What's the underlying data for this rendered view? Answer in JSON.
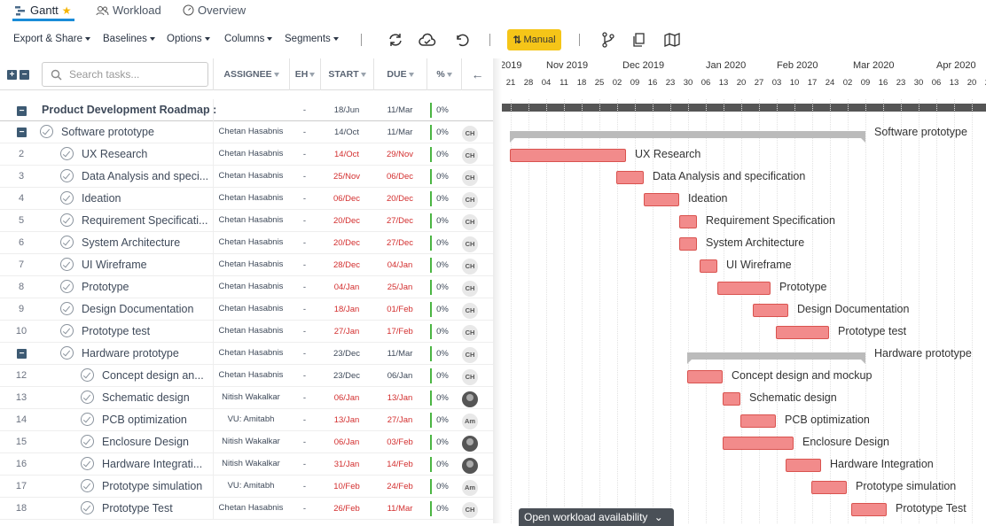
{
  "tabs": [
    {
      "label": "Gantt",
      "active": true
    },
    {
      "label": "Workload",
      "active": false
    },
    {
      "label": "Overview",
      "active": false
    }
  ],
  "toolbar": {
    "export_label": "Export & Share",
    "baselines_label": "Baselines",
    "options_label": "Options",
    "columns_label": "Columns",
    "segments_label": "Segments",
    "manual_label": "Manual"
  },
  "grid": {
    "search_placeholder": "Search tasks...",
    "columns": {
      "assignee": "ASSIGNEE",
      "eh": "EH",
      "start": "START",
      "due": "DUE",
      "pct": "%"
    }
  },
  "project": {
    "name": "Product Development Roadmap :",
    "eh": "-",
    "start": "18/Jun",
    "due": "11/Mar",
    "pct": "0%"
  },
  "rows": [
    {
      "num": "",
      "name": "Software prototype",
      "group": true,
      "indent": 1,
      "assignee": "Chetan Hasabnis",
      "eh": "-",
      "start": "14/Oct",
      "due": "11/Mar",
      "late": false,
      "pct": "0%",
      "avatar": "CH"
    },
    {
      "num": "2",
      "name": "UX Research",
      "indent": 2,
      "assignee": "Chetan Hasabnis",
      "eh": "-",
      "start": "14/Oct",
      "due": "29/Nov",
      "late": true,
      "pct": "0%",
      "avatar": "CH"
    },
    {
      "num": "3",
      "name": "Data Analysis and speci...",
      "indent": 2,
      "assignee": "Chetan Hasabnis",
      "eh": "-",
      "start": "25/Nov",
      "due": "06/Dec",
      "late": true,
      "pct": "0%",
      "avatar": "CH"
    },
    {
      "num": "4",
      "name": "Ideation",
      "indent": 2,
      "assignee": "Chetan Hasabnis",
      "eh": "-",
      "start": "06/Dec",
      "due": "20/Dec",
      "late": true,
      "pct": "0%",
      "avatar": "CH"
    },
    {
      "num": "5",
      "name": "Requirement Specificati...",
      "indent": 2,
      "assignee": "Chetan Hasabnis",
      "eh": "-",
      "start": "20/Dec",
      "due": "27/Dec",
      "late": true,
      "pct": "0%",
      "avatar": "CH"
    },
    {
      "num": "6",
      "name": "System Architecture",
      "indent": 2,
      "assignee": "Chetan Hasabnis",
      "eh": "-",
      "start": "20/Dec",
      "due": "27/Dec",
      "late": true,
      "pct": "0%",
      "avatar": "CH"
    },
    {
      "num": "7",
      "name": "UI Wireframe",
      "indent": 2,
      "assignee": "Chetan Hasabnis",
      "eh": "-",
      "start": "28/Dec",
      "due": "04/Jan",
      "late": true,
      "pct": "0%",
      "avatar": "CH"
    },
    {
      "num": "8",
      "name": "Prototype",
      "indent": 2,
      "assignee": "Chetan Hasabnis",
      "eh": "-",
      "start": "04/Jan",
      "due": "25/Jan",
      "late": true,
      "pct": "0%",
      "avatar": "CH"
    },
    {
      "num": "9",
      "name": "Design Documentation",
      "indent": 2,
      "assignee": "Chetan Hasabnis",
      "eh": "-",
      "start": "18/Jan",
      "due": "01/Feb",
      "late": true,
      "pct": "0%",
      "avatar": "CH"
    },
    {
      "num": "10",
      "name": "Prototype test",
      "indent": 2,
      "assignee": "Chetan Hasabnis",
      "eh": "-",
      "start": "27/Jan",
      "due": "17/Feb",
      "late": true,
      "pct": "0%",
      "avatar": "CH"
    },
    {
      "num": "",
      "name": "Hardware prototype",
      "group": true,
      "indent": 2,
      "assignee": "Chetan Hasabnis",
      "eh": "-",
      "start": "23/Dec",
      "due": "11/Mar",
      "late": false,
      "pct": "0%",
      "avatar": "CH"
    },
    {
      "num": "12",
      "name": "Concept design an...",
      "indent": 3,
      "assignee": "Chetan Hasabnis",
      "eh": "-",
      "start": "23/Dec",
      "due": "06/Jan",
      "late": false,
      "pct": "0%",
      "avatar": "CH"
    },
    {
      "num": "13",
      "name": "Schematic design",
      "indent": 3,
      "assignee": "Nitish Wakalkar",
      "eh": "-",
      "start": "06/Jan",
      "due": "13/Jan",
      "late": true,
      "pct": "0%",
      "avatar": "photo"
    },
    {
      "num": "14",
      "name": "PCB optimization",
      "indent": 3,
      "assignee": "VU: Amitabh",
      "eh": "-",
      "start": "13/Jan",
      "due": "27/Jan",
      "late": true,
      "pct": "0%",
      "avatar": "Am"
    },
    {
      "num": "15",
      "name": "Enclosure Design",
      "indent": 3,
      "assignee": "Nitish Wakalkar",
      "eh": "-",
      "start": "06/Jan",
      "due": "03/Feb",
      "late": true,
      "pct": "0%",
      "avatar": "photo"
    },
    {
      "num": "16",
      "name": "Hardware Integrati...",
      "indent": 3,
      "assignee": "Nitish Wakalkar",
      "eh": "-",
      "start": "31/Jan",
      "due": "14/Feb",
      "late": true,
      "pct": "0%",
      "avatar": "photo"
    },
    {
      "num": "17",
      "name": "Prototype simulation",
      "indent": 3,
      "assignee": "VU: Amitabh",
      "eh": "-",
      "start": "10/Feb",
      "due": "24/Feb",
      "late": true,
      "pct": "0%",
      "avatar": "Am"
    },
    {
      "num": "18",
      "name": "Prototype Test",
      "indent": 3,
      "assignee": "Chetan Hasabnis",
      "eh": "-",
      "start": "26/Feb",
      "due": "11/Mar",
      "late": true,
      "pct": "0%",
      "avatar": "CH"
    }
  ],
  "timeline": {
    "months": [
      "2019",
      "Nov 2019",
      "Dec 2019",
      "Jan 2020",
      "Feb 2020",
      "Mar 2020",
      "Apr 2020"
    ],
    "days": [
      "21",
      "28",
      "04",
      "11",
      "18",
      "25",
      "02",
      "09",
      "16",
      "23",
      "30",
      "06",
      "13",
      "20",
      "27",
      "03",
      "10",
      "17",
      "24",
      "02",
      "09",
      "16",
      "23",
      "30",
      "06",
      "13",
      "20",
      "27"
    ]
  },
  "bars": [
    {
      "label": "Software prototype",
      "start": "14/Oct",
      "due": "11/Mar",
      "summary": true
    },
    {
      "label": "UX Research",
      "start": "14/Oct",
      "due": "29/Nov"
    },
    {
      "label": "Data Analysis and specification",
      "start": "25/Nov",
      "due": "06/Dec"
    },
    {
      "label": "Ideation",
      "start": "06/Dec",
      "due": "20/Dec"
    },
    {
      "label": "Requirement Specification",
      "start": "20/Dec",
      "due": "27/Dec"
    },
    {
      "label": "System Architecture",
      "start": "20/Dec",
      "due": "27/Dec"
    },
    {
      "label": "UI Wireframe",
      "start": "28/Dec",
      "due": "04/Jan"
    },
    {
      "label": "Prototype",
      "start": "04/Jan",
      "due": "25/Jan"
    },
    {
      "label": "Design Documentation",
      "start": "18/Jan",
      "due": "01/Feb"
    },
    {
      "label": "Prototype test",
      "start": "27/Jan",
      "due": "17/Feb"
    },
    {
      "label": "Hardware prototype",
      "start": "23/Dec",
      "due": "11/Mar",
      "summary": true
    },
    {
      "label": "Concept design and mockup",
      "start": "23/Dec",
      "due": "06/Jan"
    },
    {
      "label": "Schematic design",
      "start": "06/Jan",
      "due": "13/Jan"
    },
    {
      "label": "PCB optimization",
      "start": "13/Jan",
      "due": "27/Jan"
    },
    {
      "label": "Enclosure Design",
      "start": "06/Jan",
      "due": "03/Feb"
    },
    {
      "label": "Hardware Integration",
      "start": "31/Jan",
      "due": "14/Feb"
    },
    {
      "label": "Prototype simulation",
      "start": "10/Feb",
      "due": "24/Feb"
    },
    {
      "label": "Prototype Test",
      "start": "26/Feb",
      "due": "11/Mar"
    }
  ],
  "workload_button": "Open workload availability",
  "colors": {
    "accent": "#1a8cd8",
    "bar": "#f28b8b",
    "bar_border": "#d9534f",
    "late_text": "#d32f2f",
    "manual_button": "#f5c518"
  }
}
